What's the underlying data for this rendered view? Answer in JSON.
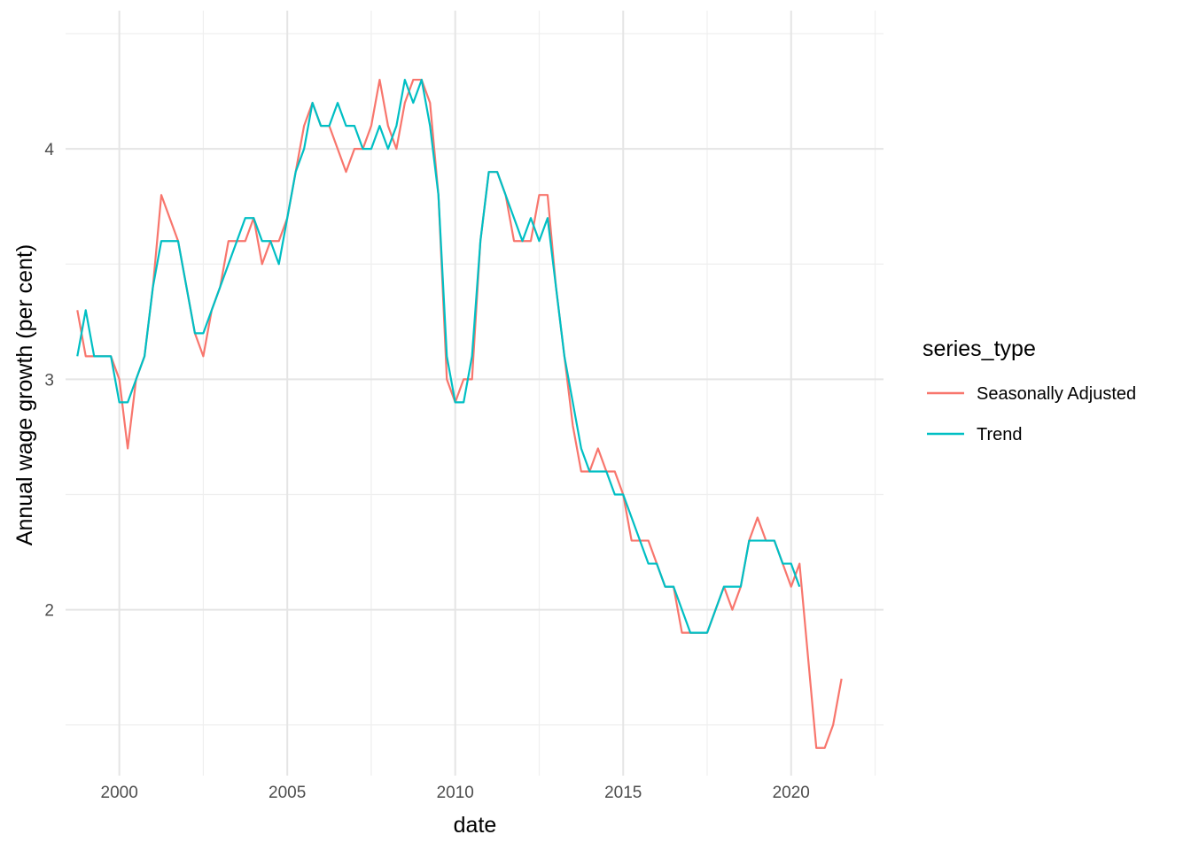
{
  "chart_data": {
    "type": "line",
    "title": "",
    "xlabel": "date",
    "ylabel": "Annual wage growth (per cent)",
    "xlim": [
      1998.4,
      2022.75
    ],
    "ylim": [
      1.28,
      4.6
    ],
    "x_ticks": [
      2000,
      2005,
      2010,
      2015,
      2020
    ],
    "x_tick_labels": [
      "2000",
      "2005",
      "2010",
      "2015",
      "2020"
    ],
    "y_ticks": [
      2,
      3,
      4
    ],
    "y_tick_labels": [
      "2",
      "3",
      "4"
    ],
    "grid": true,
    "legend": {
      "title": "series_type",
      "position": "right",
      "entries": [
        "Seasonally Adjusted",
        "Trend"
      ]
    },
    "series": [
      {
        "name": "Seasonally Adjusted",
        "color": "#F8766D",
        "x": [
          1998.75,
          1999.0,
          1999.25,
          1999.5,
          1999.75,
          2000.0,
          2000.25,
          2000.5,
          2000.75,
          2001.0,
          2001.25,
          2001.5,
          2001.75,
          2002.0,
          2002.25,
          2002.5,
          2002.75,
          2003.0,
          2003.25,
          2003.5,
          2003.75,
          2004.0,
          2004.25,
          2004.5,
          2004.75,
          2005.0,
          2005.25,
          2005.5,
          2005.75,
          2006.0,
          2006.25,
          2006.5,
          2006.75,
          2007.0,
          2007.25,
          2007.5,
          2007.75,
          2008.0,
          2008.25,
          2008.5,
          2008.75,
          2009.0,
          2009.25,
          2009.5,
          2009.75,
          2010.0,
          2010.25,
          2010.5,
          2010.75,
          2011.0,
          2011.25,
          2011.5,
          2011.75,
          2012.0,
          2012.25,
          2012.5,
          2012.75,
          2013.0,
          2013.25,
          2013.5,
          2013.75,
          2014.0,
          2014.25,
          2014.5,
          2014.75,
          2015.0,
          2015.25,
          2015.5,
          2015.75,
          2016.0,
          2016.25,
          2016.5,
          2016.75,
          2017.0,
          2017.25,
          2017.5,
          2017.75,
          2018.0,
          2018.25,
          2018.5,
          2018.75,
          2019.0,
          2019.25,
          2019.5,
          2019.75,
          2020.0,
          2020.25,
          2020.5,
          2020.75,
          2021.0,
          2021.25,
          2021.5
        ],
        "y": [
          3.3,
          3.1,
          3.1,
          3.1,
          3.1,
          3.0,
          2.7,
          3.0,
          3.1,
          3.4,
          3.8,
          3.7,
          3.6,
          3.4,
          3.2,
          3.1,
          3.3,
          3.4,
          3.6,
          3.6,
          3.6,
          3.7,
          3.5,
          3.6,
          3.6,
          3.7,
          3.9,
          4.1,
          4.2,
          4.1,
          4.1,
          4.0,
          3.9,
          4.0,
          4.0,
          4.1,
          4.3,
          4.1,
          4.0,
          4.2,
          4.3,
          4.3,
          4.2,
          3.8,
          3.0,
          2.9,
          3.0,
          3.0,
          3.6,
          3.9,
          3.9,
          3.8,
          3.6,
          3.6,
          3.6,
          3.8,
          3.8,
          3.4,
          3.1,
          2.8,
          2.6,
          2.6,
          2.7,
          2.6,
          2.6,
          2.5,
          2.3,
          2.3,
          2.3,
          2.2,
          2.1,
          2.1,
          1.9,
          1.9,
          1.9,
          1.9,
          2.0,
          2.1,
          2.0,
          2.1,
          2.3,
          2.4,
          2.3,
          2.3,
          2.2,
          2.1,
          2.2,
          1.8,
          1.4,
          1.4,
          1.5,
          1.7
        ]
      },
      {
        "name": "Trend",
        "color": "#00BFC4",
        "x": [
          1998.75,
          1999.0,
          1999.25,
          1999.5,
          1999.75,
          2000.0,
          2000.25,
          2000.5,
          2000.75,
          2001.0,
          2001.25,
          2001.5,
          2001.75,
          2002.0,
          2002.25,
          2002.5,
          2002.75,
          2003.0,
          2003.25,
          2003.5,
          2003.75,
          2004.0,
          2004.25,
          2004.5,
          2004.75,
          2005.0,
          2005.25,
          2005.5,
          2005.75,
          2006.0,
          2006.25,
          2006.5,
          2006.75,
          2007.0,
          2007.25,
          2007.5,
          2007.75,
          2008.0,
          2008.25,
          2008.5,
          2008.75,
          2009.0,
          2009.25,
          2009.5,
          2009.75,
          2010.0,
          2010.25,
          2010.5,
          2010.75,
          2011.0,
          2011.25,
          2011.5,
          2011.75,
          2012.0,
          2012.25,
          2012.5,
          2012.75,
          2013.0,
          2013.25,
          2013.5,
          2013.75,
          2014.0,
          2014.25,
          2014.5,
          2014.75,
          2015.0,
          2015.25,
          2015.5,
          2015.75,
          2016.0,
          2016.25,
          2016.5,
          2016.75,
          2017.0,
          2017.25,
          2017.5,
          2017.75,
          2018.0,
          2018.25,
          2018.5,
          2018.75,
          2019.0,
          2019.25,
          2019.5,
          2019.75,
          2020.0,
          2020.25
        ],
        "y": [
          3.1,
          3.3,
          3.1,
          3.1,
          3.1,
          2.9,
          2.9,
          3.0,
          3.1,
          3.4,
          3.6,
          3.6,
          3.6,
          3.4,
          3.2,
          3.2,
          3.3,
          3.4,
          3.5,
          3.6,
          3.7,
          3.7,
          3.6,
          3.6,
          3.5,
          3.7,
          3.9,
          4.0,
          4.2,
          4.1,
          4.1,
          4.2,
          4.1,
          4.1,
          4.0,
          4.0,
          4.1,
          4.0,
          4.1,
          4.3,
          4.2,
          4.3,
          4.1,
          3.8,
          3.1,
          2.9,
          2.9,
          3.1,
          3.6,
          3.9,
          3.9,
          3.8,
          3.7,
          3.6,
          3.7,
          3.6,
          3.7,
          3.4,
          3.1,
          2.9,
          2.7,
          2.6,
          2.6,
          2.6,
          2.5,
          2.5,
          2.4,
          2.3,
          2.2,
          2.2,
          2.1,
          2.1,
          2.0,
          1.9,
          1.9,
          1.9,
          2.0,
          2.1,
          2.1,
          2.1,
          2.3,
          2.3,
          2.3,
          2.3,
          2.2,
          2.2,
          2.1
        ]
      }
    ]
  }
}
